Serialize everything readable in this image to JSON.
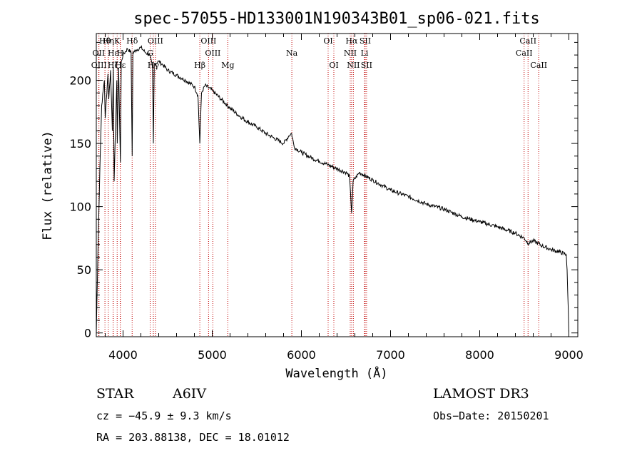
{
  "chart_data": {
    "type": "line",
    "title": "spec-57055-HD133001N190343B01_sp06-021.fits",
    "xlabel": "Wavelength (Å)",
    "ylabel": "Flux (relative)",
    "xlim": [
      3700,
      9100
    ],
    "ylim": [
      -3,
      237
    ],
    "xticks": [
      4000,
      5000,
      6000,
      7000,
      8000,
      9000
    ],
    "yticks": [
      0,
      50,
      100,
      150,
      200
    ],
    "series": [
      {
        "name": "spectrum",
        "x": [
          3700,
          3720,
          3740,
          3760,
          3790,
          3800,
          3830,
          3840,
          3860,
          3880,
          3890,
          3900,
          3930,
          3935,
          3950,
          3970,
          3980,
          4000,
          4050,
          4090,
          4102,
          4110,
          4150,
          4200,
          4250,
          4300,
          4330,
          4340,
          4350,
          4400,
          4450,
          4500,
          4600,
          4700,
          4800,
          4840,
          4861,
          4880,
          4920,
          5000,
          5100,
          5200,
          5300,
          5400,
          5500,
          5600,
          5700,
          5800,
          5860,
          5890,
          5920,
          6000,
          6100,
          6200,
          6300,
          6400,
          6500,
          6540,
          6563,
          6580,
          6650,
          6700,
          6800,
          6900,
          7000,
          7200,
          7400,
          7600,
          7800,
          8000,
          8200,
          8400,
          8500,
          8542,
          8600,
          8700,
          8800,
          8900,
          8970,
          8980,
          9000
        ],
        "y": [
          0,
          70,
          130,
          180,
          200,
          170,
          205,
          185,
          208,
          160,
          210,
          120,
          200,
          150,
          210,
          135,
          215,
          220,
          225,
          222,
          140,
          222,
          224,
          226,
          222,
          220,
          210,
          150,
          213,
          215,
          212,
          208,
          204,
          200,
          195,
          188,
          150,
          190,
          196,
          192,
          185,
          178,
          172,
          167,
          163,
          158,
          154,
          150,
          156,
          158,
          147,
          143,
          139,
          136,
          133,
          130,
          127,
          124,
          95,
          120,
          127,
          125,
          121,
          117,
          113,
          108,
          102,
          98,
          92,
          88,
          84,
          79,
          75,
          71,
          73,
          69,
          66,
          64,
          62,
          50,
          0
        ]
      }
    ],
    "spectral_lines": [
      {
        "label": "Hθ",
        "x": 3797,
        "row": 1
      },
      {
        "label": "OII",
        "x": 3727,
        "row": 2
      },
      {
        "label": "OIII",
        "x": 3730,
        "row": 3
      },
      {
        "label": "Hη",
        "x": 3835,
        "row": 1
      },
      {
        "label": "Hε",
        "x": 3889,
        "row": 2
      },
      {
        "label": "Hζ",
        "x": 3889,
        "row": 3
      },
      {
        "label": "K",
        "x": 3934,
        "row": 1
      },
      {
        "label": "H",
        "x": 3968,
        "row": 2
      },
      {
        "label": "Hε",
        "x": 3970,
        "row": 3
      },
      {
        "label": "Hδ",
        "x": 4102,
        "row": 1
      },
      {
        "label": "OIII",
        "x": 4363,
        "row": 1
      },
      {
        "label": "G",
        "x": 4304,
        "row": 2
      },
      {
        "label": "Hγ",
        "x": 4340,
        "row": 3
      },
      {
        "label": "OIII",
        "x": 4959,
        "row": 1
      },
      {
        "label": "OIII",
        "x": 5007,
        "row": 2
      },
      {
        "label": "Hβ",
        "x": 4861,
        "row": 3
      },
      {
        "label": "Mg",
        "x": 5175,
        "row": 3
      },
      {
        "label": "Na",
        "x": 5893,
        "row": 2
      },
      {
        "label": "OI",
        "x": 6300,
        "row": 1
      },
      {
        "label": "OI",
        "x": 6364,
        "row": 3
      },
      {
        "label": "Hα",
        "x": 6563,
        "row": 1
      },
      {
        "label": "NII",
        "x": 6548,
        "row": 2
      },
      {
        "label": "NII",
        "x": 6583,
        "row": 3
      },
      {
        "label": "SII",
        "x": 6716,
        "row": 1
      },
      {
        "label": "Li",
        "x": 6708,
        "row": 2
      },
      {
        "label": "SII",
        "x": 6731,
        "row": 3
      },
      {
        "label": "CaII",
        "x": 8542,
        "row": 1
      },
      {
        "label": "CaII",
        "x": 8498,
        "row": 2
      },
      {
        "label": "CaII",
        "x": 8662,
        "row": 3
      }
    ],
    "grid": false
  },
  "info": {
    "object_type": "STAR",
    "subclass": "A6IV",
    "survey": "LAMOST DR3",
    "cz": "cz = −45.9 ± 9.3 km/s",
    "obs_date": "Obs−Date: 20150201",
    "coords": "RA = 203.88138, DEC =  18.01012"
  },
  "colors": {
    "line_marker": "#c00000",
    "spectrum": "#000000"
  }
}
